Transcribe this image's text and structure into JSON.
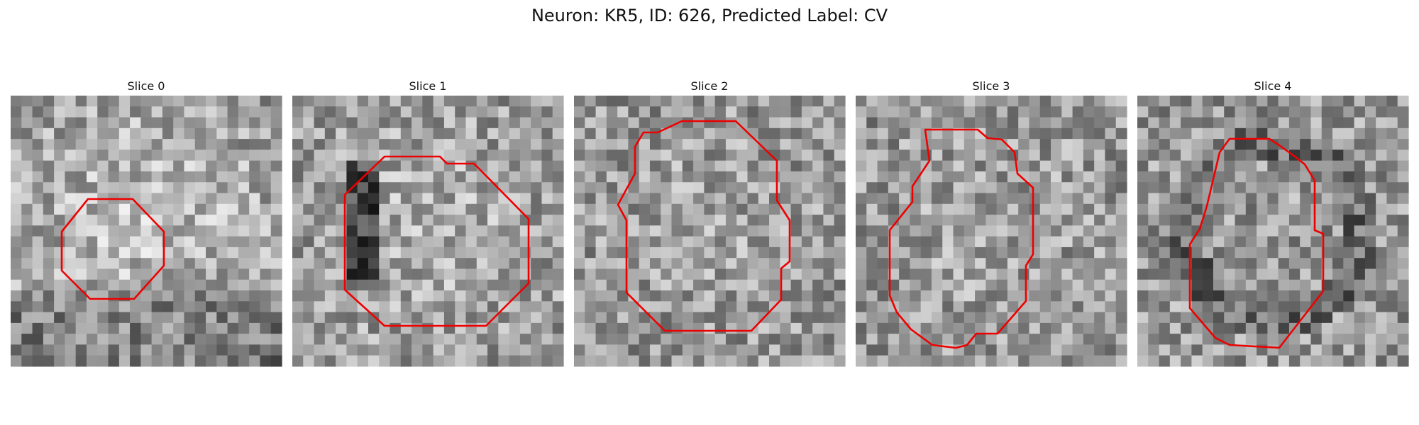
{
  "title": "Neuron: KR5, ID: 626, Predicted Label: CV",
  "colors": {
    "contour": "#ee0000",
    "background": "#ffffff",
    "text": "#111111"
  },
  "panels": [
    {
      "title": "Slice 0",
      "seed": 11,
      "shade": "lighter-center"
    },
    {
      "title": "Slice 1",
      "seed": 23,
      "shade": "dark-left-edge"
    },
    {
      "title": "Slice 2",
      "seed": 37,
      "shade": "mid"
    },
    {
      "title": "Slice 3",
      "seed": 51,
      "shade": "mid"
    },
    {
      "title": "Slice 4",
      "seed": 67,
      "shade": "dark-ring"
    }
  ]
}
